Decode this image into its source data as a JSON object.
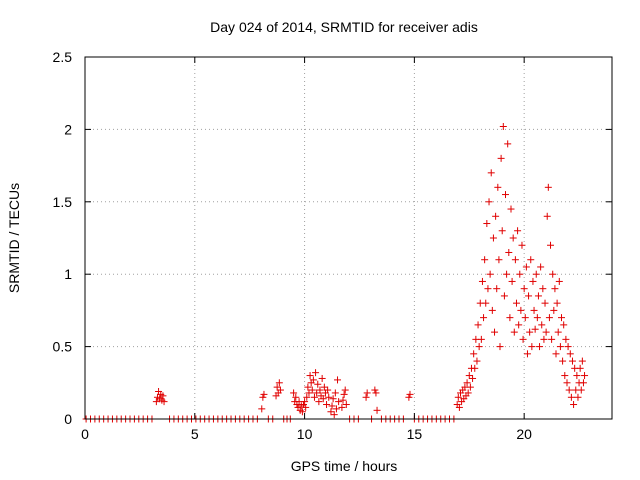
{
  "chart_data": {
    "type": "scatter",
    "title": "Day 024 of 2014, SRMTID for receiver adis",
    "xlabel": "GPS time / hours",
    "ylabel": "SRMTID / TECUs",
    "xlim": [
      0,
      24
    ],
    "ylim": [
      0,
      2.5
    ],
    "xticks": [
      0,
      5,
      10,
      15,
      20
    ],
    "xtick_labels": [
      "0",
      "5",
      "10",
      "15",
      "20"
    ],
    "yticks": [
      0,
      0.5,
      1,
      1.5,
      2,
      2.5
    ],
    "ytick_labels": [
      "0",
      "0.5",
      "1",
      "1.5",
      "2",
      "2.5"
    ],
    "grid": true,
    "marker": "+",
    "color": "#e00000",
    "series": [
      {
        "name": "SRMTID",
        "points": [
          [
            0.05,
            0
          ],
          [
            0.25,
            0
          ],
          [
            0.45,
            0
          ],
          [
            0.65,
            0
          ],
          [
            0.85,
            0
          ],
          [
            1.05,
            0
          ],
          [
            1.25,
            0
          ],
          [
            1.45,
            0
          ],
          [
            1.65,
            0
          ],
          [
            1.85,
            0
          ],
          [
            2.05,
            0
          ],
          [
            2.25,
            0
          ],
          [
            2.45,
            0
          ],
          [
            2.65,
            0
          ],
          [
            2.85,
            0
          ],
          [
            3.05,
            0
          ],
          [
            3.25,
            0.12
          ],
          [
            3.3,
            0.15
          ],
          [
            3.35,
            0.19
          ],
          [
            3.4,
            0.14
          ],
          [
            3.45,
            0.17
          ],
          [
            3.5,
            0.13
          ],
          [
            3.55,
            0.16
          ],
          [
            3.6,
            0.12
          ],
          [
            3.85,
            0
          ],
          [
            4.05,
            0
          ],
          [
            4.25,
            0
          ],
          [
            4.45,
            0
          ],
          [
            4.65,
            0
          ],
          [
            4.85,
            0
          ],
          [
            5.05,
            0
          ],
          [
            5.25,
            0
          ],
          [
            5.45,
            0
          ],
          [
            5.65,
            0
          ],
          [
            5.85,
            0
          ],
          [
            6.05,
            0
          ],
          [
            6.25,
            0
          ],
          [
            6.45,
            0
          ],
          [
            6.65,
            0
          ],
          [
            6.85,
            0
          ],
          [
            7.05,
            0
          ],
          [
            7.25,
            0
          ],
          [
            7.45,
            0
          ],
          [
            7.65,
            0
          ],
          [
            7.85,
            0
          ],
          [
            8.05,
            0.07
          ],
          [
            8.1,
            0.15
          ],
          [
            8.15,
            0.17
          ],
          [
            8.35,
            0
          ],
          [
            8.55,
            0
          ],
          [
            8.7,
            0.16
          ],
          [
            8.75,
            0.22
          ],
          [
            8.8,
            0.18
          ],
          [
            8.85,
            0.25
          ],
          [
            8.9,
            0.2
          ],
          [
            9.05,
            0
          ],
          [
            9.2,
            0
          ],
          [
            9.35,
            0
          ],
          [
            9.5,
            0.18
          ],
          [
            9.55,
            0.12
          ],
          [
            9.6,
            0.15
          ],
          [
            9.65,
            0.1
          ],
          [
            9.7,
            0.08
          ],
          [
            9.75,
            0.12
          ],
          [
            9.8,
            0.06
          ],
          [
            9.85,
            0.09
          ],
          [
            9.9,
            0.05
          ],
          [
            9.95,
            0.1
          ],
          [
            10.0,
            0.12
          ],
          [
            10.05,
            0.08
          ],
          [
            10.1,
            0.15
          ],
          [
            10.15,
            0.22
          ],
          [
            10.2,
            0.18
          ],
          [
            10.25,
            0.3
          ],
          [
            10.3,
            0.25
          ],
          [
            10.35,
            0.2
          ],
          [
            10.4,
            0.27
          ],
          [
            10.45,
            0.15
          ],
          [
            10.5,
            0.32
          ],
          [
            10.55,
            0.18
          ],
          [
            10.6,
            0.24
          ],
          [
            10.65,
            0.12
          ],
          [
            10.7,
            0.2
          ],
          [
            10.75,
            0.16
          ],
          [
            10.8,
            0.28
          ],
          [
            10.85,
            0.14
          ],
          [
            10.9,
            0.22
          ],
          [
            10.95,
            0.18
          ],
          [
            11.0,
            0.1
          ],
          [
            11.05,
            0.2
          ],
          [
            11.1,
            0.15
          ],
          [
            11.2,
            0.05
          ],
          [
            11.25,
            0.09
          ],
          [
            11.3,
            0.14
          ],
          [
            11.35,
            0.03
          ],
          [
            11.4,
            0.18
          ],
          [
            11.45,
            0.07
          ],
          [
            11.5,
            0.27
          ],
          [
            11.55,
            0.12
          ],
          [
            11.7,
            0.08
          ],
          [
            11.75,
            0.13
          ],
          [
            11.8,
            0.17
          ],
          [
            11.85,
            0.2
          ],
          [
            11.9,
            0.1
          ],
          [
            12.05,
            0
          ],
          [
            12.25,
            0
          ],
          [
            12.45,
            0
          ],
          [
            12.8,
            0.15
          ],
          [
            12.85,
            0.18
          ],
          [
            13.05,
            0
          ],
          [
            13.2,
            0.2
          ],
          [
            13.25,
            0.18
          ],
          [
            13.3,
            0.06
          ],
          [
            13.5,
            0
          ],
          [
            13.7,
            0
          ],
          [
            13.9,
            0
          ],
          [
            14.1,
            0
          ],
          [
            14.3,
            0
          ],
          [
            14.5,
            0
          ],
          [
            14.75,
            0.15
          ],
          [
            14.8,
            0.17
          ],
          [
            15.0,
            0
          ],
          [
            15.2,
            0
          ],
          [
            15.4,
            0
          ],
          [
            15.6,
            0
          ],
          [
            15.8,
            0
          ],
          [
            16.0,
            0
          ],
          [
            16.2,
            0
          ],
          [
            16.4,
            0
          ],
          [
            16.6,
            0
          ],
          [
            16.8,
            0
          ],
          [
            16.95,
            0.1
          ],
          [
            17.0,
            0.15
          ],
          [
            17.05,
            0.08
          ],
          [
            17.1,
            0.18
          ],
          [
            17.15,
            0.12
          ],
          [
            17.2,
            0.2
          ],
          [
            17.25,
            0.14
          ],
          [
            17.3,
            0.22
          ],
          [
            17.35,
            0.16
          ],
          [
            17.4,
            0.25
          ],
          [
            17.45,
            0.18
          ],
          [
            17.5,
            0.3
          ],
          [
            17.55,
            0.22
          ],
          [
            17.6,
            0.35
          ],
          [
            17.65,
            0.28
          ],
          [
            17.7,
            0.45
          ],
          [
            17.75,
            0.35
          ],
          [
            17.8,
            0.55
          ],
          [
            17.85,
            0.4
          ],
          [
            17.9,
            0.65
          ],
          [
            17.95,
            0.5
          ],
          [
            18.0,
            0.8
          ],
          [
            18.05,
            0.55
          ],
          [
            18.1,
            0.95
          ],
          [
            18.15,
            0.7
          ],
          [
            18.2,
            1.1
          ],
          [
            18.25,
            0.8
          ],
          [
            18.3,
            1.35
          ],
          [
            18.35,
            0.9
          ],
          [
            18.4,
            1.5
          ],
          [
            18.45,
            1.0
          ],
          [
            18.5,
            1.7
          ],
          [
            18.55,
            0.75
          ],
          [
            18.6,
            1.25
          ],
          [
            18.65,
            0.6
          ],
          [
            18.7,
            1.4
          ],
          [
            18.75,
            0.9
          ],
          [
            18.8,
            1.6
          ],
          [
            18.85,
            1.1
          ],
          [
            18.9,
            0.5
          ],
          [
            18.95,
            1.8
          ],
          [
            19.0,
            1.3
          ],
          [
            19.05,
            2.02
          ],
          [
            19.1,
            0.85
          ],
          [
            19.15,
            1.55
          ],
          [
            19.2,
            1.0
          ],
          [
            19.25,
            1.9
          ],
          [
            19.3,
            1.15
          ],
          [
            19.35,
            0.7
          ],
          [
            19.4,
            1.45
          ],
          [
            19.45,
            0.95
          ],
          [
            19.5,
            1.25
          ],
          [
            19.55,
            0.6
          ],
          [
            19.6,
            1.1
          ],
          [
            19.65,
            0.8
          ],
          [
            19.7,
            1.3
          ],
          [
            19.75,
            0.65
          ],
          [
            19.8,
            1.0
          ],
          [
            19.85,
            0.75
          ],
          [
            19.9,
            1.2
          ],
          [
            19.95,
            0.55
          ],
          [
            20.0,
            0.9
          ],
          [
            20.05,
            0.7
          ],
          [
            20.1,
            1.05
          ],
          [
            20.15,
            0.45
          ],
          [
            20.2,
            0.85
          ],
          [
            20.25,
            0.6
          ],
          [
            20.3,
            1.1
          ],
          [
            20.35,
            0.5
          ],
          [
            20.4,
            0.95
          ],
          [
            20.45,
            0.75
          ],
          [
            20.5,
            0.62
          ],
          [
            20.55,
            1.0
          ],
          [
            20.6,
            0.7
          ],
          [
            20.65,
            0.85
          ],
          [
            20.7,
            0.5
          ],
          [
            20.75,
            1.05
          ],
          [
            20.8,
            0.65
          ],
          [
            20.85,
            0.9
          ],
          [
            20.9,
            0.55
          ],
          [
            20.95,
            0.8
          ],
          [
            21.0,
            0.6
          ],
          [
            21.05,
            1.4
          ],
          [
            21.1,
            1.6
          ],
          [
            21.15,
            0.7
          ],
          [
            21.2,
            1.2
          ],
          [
            21.25,
            0.55
          ],
          [
            21.3,
            1.0
          ],
          [
            21.35,
            0.75
          ],
          [
            21.4,
            0.9
          ],
          [
            21.45,
            0.45
          ],
          [
            21.5,
            0.8
          ],
          [
            21.55,
            0.6
          ],
          [
            21.6,
            0.95
          ],
          [
            21.65,
            0.5
          ],
          [
            21.7,
            0.7
          ],
          [
            21.75,
            0.4
          ],
          [
            21.8,
            0.65
          ],
          [
            21.85,
            0.3
          ],
          [
            21.9,
            0.55
          ],
          [
            21.95,
            0.25
          ],
          [
            22.0,
            0.5
          ],
          [
            22.05,
            0.2
          ],
          [
            22.1,
            0.45
          ],
          [
            22.15,
            0.15
          ],
          [
            22.2,
            0.4
          ],
          [
            22.25,
            0.1
          ],
          [
            22.3,
            0.35
          ],
          [
            22.35,
            0.2
          ],
          [
            22.4,
            0.3
          ],
          [
            22.45,
            0.15
          ],
          [
            22.5,
            0.25
          ],
          [
            22.55,
            0.35
          ],
          [
            22.6,
            0.2
          ],
          [
            22.65,
            0.4
          ],
          [
            22.7,
            0.25
          ],
          [
            22.75,
            0.3
          ]
        ]
      }
    ]
  }
}
